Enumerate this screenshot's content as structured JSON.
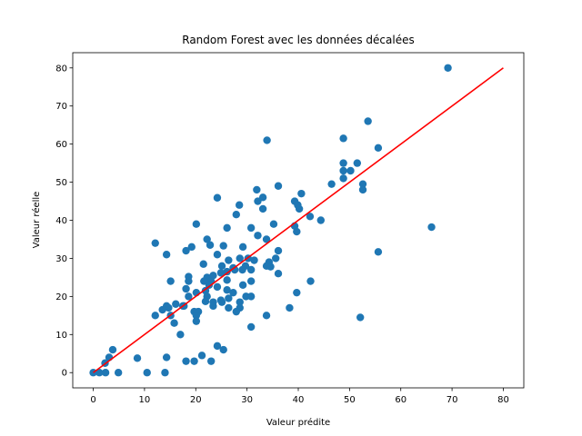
{
  "chart_data": {
    "type": "scatter",
    "title": "Random Forest avec les données décalées",
    "xlabel": "Valeur prédite",
    "ylabel": "Valeur réelle",
    "xlim": [
      -4,
      84
    ],
    "ylim": [
      -4,
      84
    ],
    "xticks": [
      0,
      10,
      20,
      30,
      40,
      50,
      60,
      70,
      80
    ],
    "yticks": [
      0,
      10,
      20,
      30,
      40,
      50,
      60,
      70,
      80
    ],
    "grid": false,
    "colors": {
      "points": "#1f77b4",
      "line": "#ff0000"
    },
    "reference_line": {
      "x": [
        0,
        80
      ],
      "y": [
        0,
        80
      ]
    },
    "points": [
      [
        69.2,
        80
      ],
      [
        53.6,
        66
      ],
      [
        48.8,
        61.5
      ],
      [
        55.6,
        59
      ],
      [
        33.9,
        61
      ],
      [
        48.8,
        55
      ],
      [
        51.5,
        55
      ],
      [
        48.8,
        53
      ],
      [
        50.2,
        53
      ],
      [
        48.8,
        51
      ],
      [
        46.5,
        49.5
      ],
      [
        52.6,
        49.5
      ],
      [
        52.6,
        48
      ],
      [
        36.1,
        49
      ],
      [
        31.9,
        48
      ],
      [
        40.6,
        47
      ],
      [
        33.1,
        46
      ],
      [
        32.1,
        45
      ],
      [
        39.3,
        45
      ],
      [
        24.2,
        45.9
      ],
      [
        28.5,
        44
      ],
      [
        33.1,
        43
      ],
      [
        39.9,
        44
      ],
      [
        42.3,
        41
      ],
      [
        40.2,
        43
      ],
      [
        44.4,
        40
      ],
      [
        27.9,
        41.5
      ],
      [
        35.2,
        39
      ],
      [
        20.1,
        39
      ],
      [
        30.8,
        38
      ],
      [
        39.3,
        38.5
      ],
      [
        39.7,
        37
      ],
      [
        26.1,
        38
      ],
      [
        66.0,
        38.2
      ],
      [
        32.1,
        36
      ],
      [
        22.2,
        35
      ],
      [
        33.8,
        35
      ],
      [
        22.8,
        33.5
      ],
      [
        12.1,
        34
      ],
      [
        19.2,
        33
      ],
      [
        25.4,
        33.3
      ],
      [
        29.2,
        33
      ],
      [
        36.1,
        32
      ],
      [
        18.1,
        32
      ],
      [
        55.6,
        31.7
      ],
      [
        14.3,
        31
      ],
      [
        24.2,
        31
      ],
      [
        30.2,
        30
      ],
      [
        28.6,
        30
      ],
      [
        35.6,
        30
      ],
      [
        31.4,
        29.5
      ],
      [
        34.3,
        29
      ],
      [
        26.4,
        29.5
      ],
      [
        21.5,
        28.5
      ],
      [
        25.1,
        28
      ],
      [
        27.3,
        27.5
      ],
      [
        29.7,
        28
      ],
      [
        33.8,
        28
      ],
      [
        30.8,
        27
      ],
      [
        34.6,
        27.8
      ],
      [
        29.1,
        27
      ],
      [
        27.6,
        27
      ],
      [
        26.1,
        26.5
      ],
      [
        24.9,
        26.2
      ],
      [
        36.1,
        26
      ],
      [
        23.4,
        25.5
      ],
      [
        22.2,
        25
      ],
      [
        18.6,
        25.2
      ],
      [
        18.6,
        24
      ],
      [
        15.1,
        24
      ],
      [
        21.6,
        24
      ],
      [
        23.0,
        24
      ],
      [
        26.1,
        24.3
      ],
      [
        30.8,
        24
      ],
      [
        42.4,
        24
      ],
      [
        22.6,
        23
      ],
      [
        24.2,
        22.5
      ],
      [
        29.2,
        23
      ],
      [
        18.1,
        22
      ],
      [
        21.9,
        21.5
      ],
      [
        26.1,
        21.7
      ],
      [
        20.1,
        21
      ],
      [
        27.3,
        21
      ],
      [
        39.7,
        21
      ],
      [
        18.6,
        20
      ],
      [
        22.2,
        20
      ],
      [
        29.8,
        20
      ],
      [
        30.8,
        20
      ],
      [
        24.9,
        19
      ],
      [
        26.4,
        19.5
      ],
      [
        23.4,
        18.5
      ],
      [
        25.1,
        18.5
      ],
      [
        28.6,
        18.5
      ],
      [
        21.9,
        18.7
      ],
      [
        14.3,
        17.5
      ],
      [
        17.5,
        17.5
      ],
      [
        14.7,
        17
      ],
      [
        16.1,
        18
      ],
      [
        26.4,
        17
      ],
      [
        28.6,
        17
      ],
      [
        38.3,
        17
      ],
      [
        23.4,
        17.5
      ],
      [
        13.5,
        16.5
      ],
      [
        17.7,
        17.5
      ],
      [
        19.7,
        16
      ],
      [
        20.5,
        16
      ],
      [
        27.9,
        16
      ],
      [
        12.1,
        15
      ],
      [
        15.1,
        15
      ],
      [
        20.1,
        15
      ],
      [
        33.8,
        15
      ],
      [
        52.1,
        14.5
      ],
      [
        15.8,
        13
      ],
      [
        20.1,
        13.5
      ],
      [
        30.8,
        12
      ],
      [
        17.0,
        10
      ],
      [
        21.2,
        4.5
      ],
      [
        23.0,
        3
      ],
      [
        18.1,
        3
      ],
      [
        19.7,
        3
      ],
      [
        14.3,
        4
      ],
      [
        24.2,
        7
      ],
      [
        25.4,
        6
      ],
      [
        3.1,
        4
      ],
      [
        3.8,
        6
      ],
      [
        8.6,
        3.8
      ],
      [
        2.3,
        2.5
      ],
      [
        0.0,
        0
      ],
      [
        1.2,
        0
      ],
      [
        2.4,
        0
      ],
      [
        4.9,
        0
      ],
      [
        10.5,
        0
      ],
      [
        14.0,
        0
      ]
    ]
  }
}
